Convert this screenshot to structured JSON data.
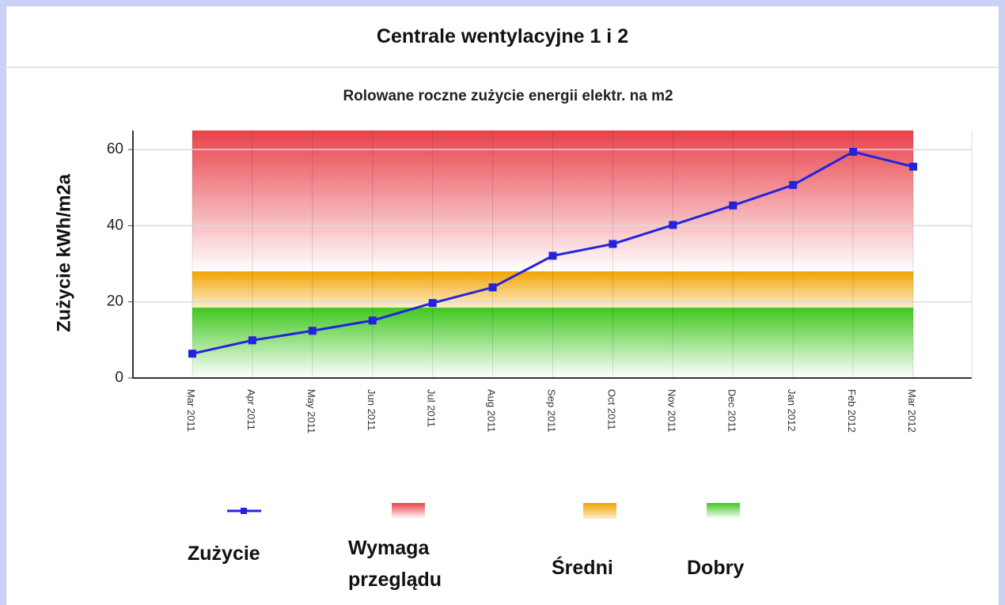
{
  "header": {
    "title": "Centrale wentylacyjne 1 i 2"
  },
  "chart_data": {
    "type": "line",
    "title": "Rolowane roczne zużycie energii elektr. na m2",
    "y_label": "Zużycie kWh/m2a",
    "categories": [
      "Mar 2011",
      "Apr 2011",
      "May 2011",
      "Jun 2011",
      "Jul 2011",
      "Aug 2011",
      "Sep 2011",
      "Oct 2011",
      "Nov 2011",
      "Dec 2011",
      "Jan 2012",
      "Feb 2012",
      "Mar 2012"
    ],
    "series": [
      {
        "name": "Zużycie",
        "color": "#2323dc",
        "values": [
          6.4,
          9.9,
          12.4,
          15.1,
          19.7,
          23.8,
          32.1,
          35.2,
          40.2,
          45.3,
          50.7,
          59.4,
          55.5
        ]
      }
    ],
    "bands": [
      {
        "name": "Wymaga przeglądu",
        "color": "#e8424a",
        "from": 28,
        "to": 65
      },
      {
        "name": "Średni",
        "color": "#f2a400",
        "from": 18.5,
        "to": 28
      },
      {
        "name": "Dobry",
        "color": "#3fc81e",
        "from": 0,
        "to": 18.5
      }
    ],
    "ylim": [
      0,
      65
    ],
    "yticks": [
      0,
      20,
      40,
      60
    ],
    "grid": true
  }
}
